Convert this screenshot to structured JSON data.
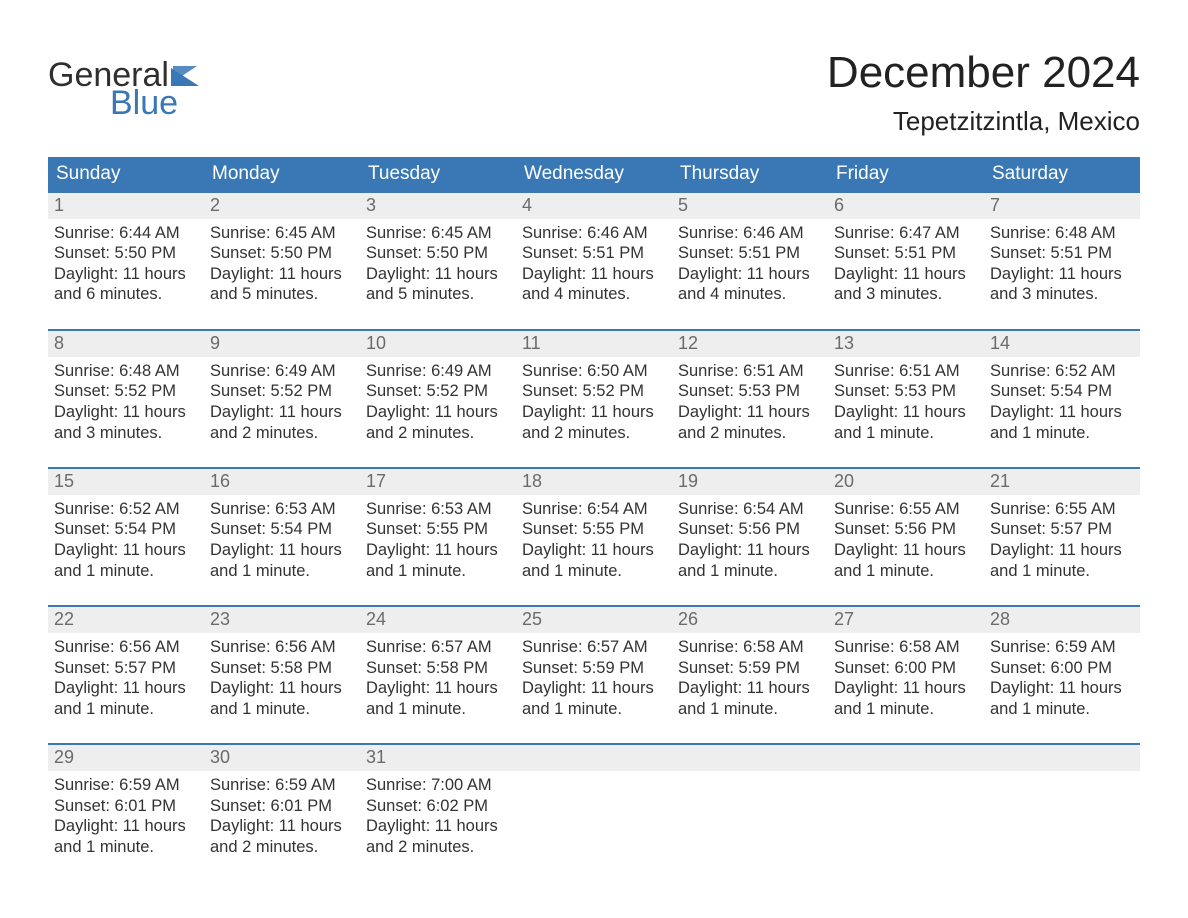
{
  "logo": {
    "word1": "General",
    "word2": "Blue",
    "flag_color": "#3a78b5",
    "text_color_dark": "#2f2f2f"
  },
  "title": "December 2024",
  "location": "Tepetzitzintla, Mexico",
  "colors": {
    "header_bg": "#3a78b5",
    "header_text": "#ffffff",
    "daynum_bg": "#eeeeee",
    "daynum_text": "#6b6b6b",
    "daynum_border_top": "#3a78b5",
    "body_text": "#333333",
    "page_bg": "#ffffff"
  },
  "typography": {
    "title_fontsize": 44,
    "location_fontsize": 26,
    "dow_fontsize": 19,
    "daynum_fontsize": 18,
    "cell_fontsize": 16.5,
    "font_family": "Arial"
  },
  "layout": {
    "columns": 7,
    "rows": 5,
    "week_gap": 24
  },
  "days_of_week": [
    "Sunday",
    "Monday",
    "Tuesday",
    "Wednesday",
    "Thursday",
    "Friday",
    "Saturday"
  ],
  "weeks": [
    [
      {
        "num": "1",
        "sunrise": "Sunrise: 6:44 AM",
        "sunset": "Sunset: 5:50 PM",
        "day1": "Daylight: 11 hours",
        "day2": "and 6 minutes."
      },
      {
        "num": "2",
        "sunrise": "Sunrise: 6:45 AM",
        "sunset": "Sunset: 5:50 PM",
        "day1": "Daylight: 11 hours",
        "day2": "and 5 minutes."
      },
      {
        "num": "3",
        "sunrise": "Sunrise: 6:45 AM",
        "sunset": "Sunset: 5:50 PM",
        "day1": "Daylight: 11 hours",
        "day2": "and 5 minutes."
      },
      {
        "num": "4",
        "sunrise": "Sunrise: 6:46 AM",
        "sunset": "Sunset: 5:51 PM",
        "day1": "Daylight: 11 hours",
        "day2": "and 4 minutes."
      },
      {
        "num": "5",
        "sunrise": "Sunrise: 6:46 AM",
        "sunset": "Sunset: 5:51 PM",
        "day1": "Daylight: 11 hours",
        "day2": "and 4 minutes."
      },
      {
        "num": "6",
        "sunrise": "Sunrise: 6:47 AM",
        "sunset": "Sunset: 5:51 PM",
        "day1": "Daylight: 11 hours",
        "day2": "and 3 minutes."
      },
      {
        "num": "7",
        "sunrise": "Sunrise: 6:48 AM",
        "sunset": "Sunset: 5:51 PM",
        "day1": "Daylight: 11 hours",
        "day2": "and 3 minutes."
      }
    ],
    [
      {
        "num": "8",
        "sunrise": "Sunrise: 6:48 AM",
        "sunset": "Sunset: 5:52 PM",
        "day1": "Daylight: 11 hours",
        "day2": "and 3 minutes."
      },
      {
        "num": "9",
        "sunrise": "Sunrise: 6:49 AM",
        "sunset": "Sunset: 5:52 PM",
        "day1": "Daylight: 11 hours",
        "day2": "and 2 minutes."
      },
      {
        "num": "10",
        "sunrise": "Sunrise: 6:49 AM",
        "sunset": "Sunset: 5:52 PM",
        "day1": "Daylight: 11 hours",
        "day2": "and 2 minutes."
      },
      {
        "num": "11",
        "sunrise": "Sunrise: 6:50 AM",
        "sunset": "Sunset: 5:52 PM",
        "day1": "Daylight: 11 hours",
        "day2": "and 2 minutes."
      },
      {
        "num": "12",
        "sunrise": "Sunrise: 6:51 AM",
        "sunset": "Sunset: 5:53 PM",
        "day1": "Daylight: 11 hours",
        "day2": "and 2 minutes."
      },
      {
        "num": "13",
        "sunrise": "Sunrise: 6:51 AM",
        "sunset": "Sunset: 5:53 PM",
        "day1": "Daylight: 11 hours",
        "day2": "and 1 minute."
      },
      {
        "num": "14",
        "sunrise": "Sunrise: 6:52 AM",
        "sunset": "Sunset: 5:54 PM",
        "day1": "Daylight: 11 hours",
        "day2": "and 1 minute."
      }
    ],
    [
      {
        "num": "15",
        "sunrise": "Sunrise: 6:52 AM",
        "sunset": "Sunset: 5:54 PM",
        "day1": "Daylight: 11 hours",
        "day2": "and 1 minute."
      },
      {
        "num": "16",
        "sunrise": "Sunrise: 6:53 AM",
        "sunset": "Sunset: 5:54 PM",
        "day1": "Daylight: 11 hours",
        "day2": "and 1 minute."
      },
      {
        "num": "17",
        "sunrise": "Sunrise: 6:53 AM",
        "sunset": "Sunset: 5:55 PM",
        "day1": "Daylight: 11 hours",
        "day2": "and 1 minute."
      },
      {
        "num": "18",
        "sunrise": "Sunrise: 6:54 AM",
        "sunset": "Sunset: 5:55 PM",
        "day1": "Daylight: 11 hours",
        "day2": "and 1 minute."
      },
      {
        "num": "19",
        "sunrise": "Sunrise: 6:54 AM",
        "sunset": "Sunset: 5:56 PM",
        "day1": "Daylight: 11 hours",
        "day2": "and 1 minute."
      },
      {
        "num": "20",
        "sunrise": "Sunrise: 6:55 AM",
        "sunset": "Sunset: 5:56 PM",
        "day1": "Daylight: 11 hours",
        "day2": "and 1 minute."
      },
      {
        "num": "21",
        "sunrise": "Sunrise: 6:55 AM",
        "sunset": "Sunset: 5:57 PM",
        "day1": "Daylight: 11 hours",
        "day2": "and 1 minute."
      }
    ],
    [
      {
        "num": "22",
        "sunrise": "Sunrise: 6:56 AM",
        "sunset": "Sunset: 5:57 PM",
        "day1": "Daylight: 11 hours",
        "day2": "and 1 minute."
      },
      {
        "num": "23",
        "sunrise": "Sunrise: 6:56 AM",
        "sunset": "Sunset: 5:58 PM",
        "day1": "Daylight: 11 hours",
        "day2": "and 1 minute."
      },
      {
        "num": "24",
        "sunrise": "Sunrise: 6:57 AM",
        "sunset": "Sunset: 5:58 PM",
        "day1": "Daylight: 11 hours",
        "day2": "and 1 minute."
      },
      {
        "num": "25",
        "sunrise": "Sunrise: 6:57 AM",
        "sunset": "Sunset: 5:59 PM",
        "day1": "Daylight: 11 hours",
        "day2": "and 1 minute."
      },
      {
        "num": "26",
        "sunrise": "Sunrise: 6:58 AM",
        "sunset": "Sunset: 5:59 PM",
        "day1": "Daylight: 11 hours",
        "day2": "and 1 minute."
      },
      {
        "num": "27",
        "sunrise": "Sunrise: 6:58 AM",
        "sunset": "Sunset: 6:00 PM",
        "day1": "Daylight: 11 hours",
        "day2": "and 1 minute."
      },
      {
        "num": "28",
        "sunrise": "Sunrise: 6:59 AM",
        "sunset": "Sunset: 6:00 PM",
        "day1": "Daylight: 11 hours",
        "day2": "and 1 minute."
      }
    ],
    [
      {
        "num": "29",
        "sunrise": "Sunrise: 6:59 AM",
        "sunset": "Sunset: 6:01 PM",
        "day1": "Daylight: 11 hours",
        "day2": "and 1 minute."
      },
      {
        "num": "30",
        "sunrise": "Sunrise: 6:59 AM",
        "sunset": "Sunset: 6:01 PM",
        "day1": "Daylight: 11 hours",
        "day2": "and 2 minutes."
      },
      {
        "num": "31",
        "sunrise": "Sunrise: 7:00 AM",
        "sunset": "Sunset: 6:02 PM",
        "day1": "Daylight: 11 hours",
        "day2": "and 2 minutes."
      },
      {
        "empty": true
      },
      {
        "empty": true
      },
      {
        "empty": true
      },
      {
        "empty": true
      }
    ]
  ]
}
